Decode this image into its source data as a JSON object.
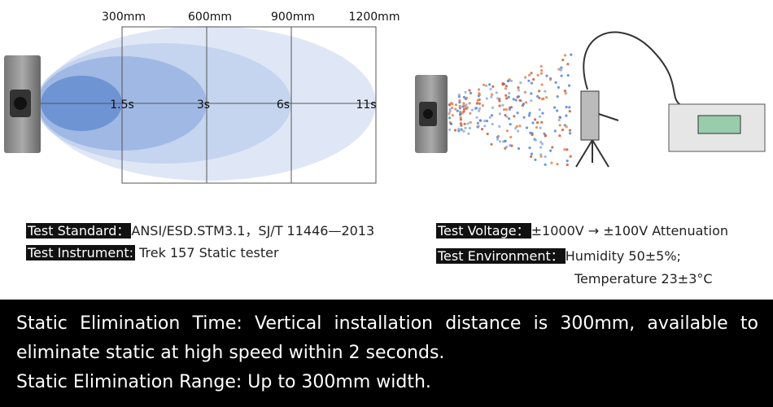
{
  "diagram": {
    "distances": [
      "300mm",
      "600mm",
      "900mm",
      "1200mm"
    ],
    "times": [
      "1.5s",
      "3s",
      "6s",
      "11s"
    ]
  },
  "specs": {
    "standard": {
      "label": "Test Standard：",
      "value": "ANSI/ESD.STM3.1，SJ/T 11446—2013"
    },
    "instrument": {
      "label": "Test Instrument:",
      "value": "Trek 157 Static tester"
    },
    "voltage": {
      "label": "Test Voltage：",
      "value": "±1000V → ±100V Attenuation"
    },
    "environment": {
      "label": "Test Environment：",
      "value": "Humidity 50±5%;",
      "value_line2": "Temperature 23±3°C"
    }
  },
  "footer": {
    "lines": [
      "Static Elimination Time: Vertical installation distance is 300mm, available to eliminate static at high speed within 2 seconds.",
      "Static Elimination Range: Up to 300mm width."
    ]
  }
}
